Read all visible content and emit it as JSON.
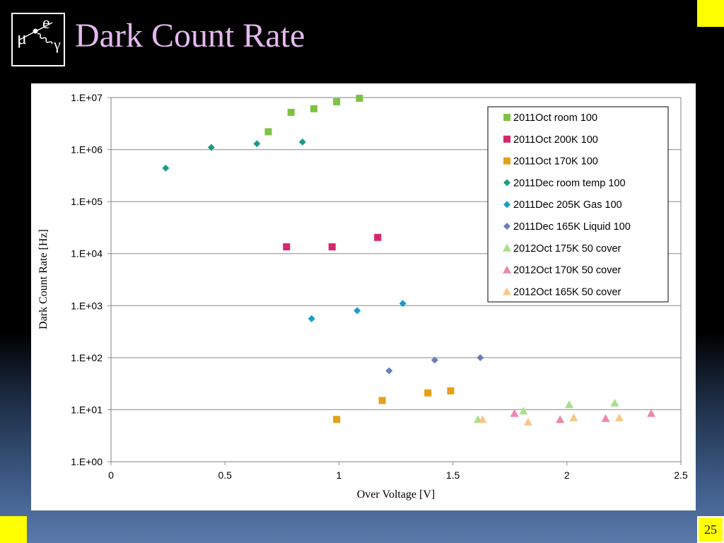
{
  "slide": {
    "title": "Dark Count Rate",
    "page_number": "25",
    "logo_letters": {
      "mu": "μ",
      "e": "e",
      "gamma": "γ"
    }
  },
  "colors": {
    "title": "#e4b8ef",
    "corner_squares": "#ffff00"
  },
  "chart_data": {
    "type": "scatter",
    "title": "",
    "xlabel": "Over Voltage [V]",
    "ylabel": "Dark Count Rate [Hz]",
    "xlim": [
      0,
      2.5
    ],
    "ylim": [
      1,
      10000000
    ],
    "y_scale": "log",
    "x_ticks": [
      0,
      0.5,
      1,
      1.5,
      2,
      2.5
    ],
    "x_tick_labels": [
      "0",
      "0.5",
      "1",
      "1.5",
      "2",
      "2.5"
    ],
    "y_ticks": [
      1,
      10,
      100,
      1000,
      10000,
      100000,
      1000000,
      10000000
    ],
    "y_tick_labels": [
      "1.E+00",
      "1.E+01",
      "1.E+02",
      "1.E+03",
      "1.E+04",
      "1.E+05",
      "1.E+06",
      "1.E+07"
    ],
    "grid": "horizontal major lines",
    "legend_position": "top-right",
    "series": [
      {
        "name": "2011Oct room 100",
        "marker": "square",
        "color": "#7dc242",
        "points": [
          [
            0.69,
            2200000
          ],
          [
            0.79,
            5200000
          ],
          [
            0.89,
            6100000
          ],
          [
            0.99,
            8300000
          ],
          [
            1.09,
            9700000
          ]
        ]
      },
      {
        "name": "2011Oct 200K 100",
        "marker": "square",
        "color": "#d6266e",
        "points": [
          [
            0.77,
            13500
          ],
          [
            0.97,
            13500
          ],
          [
            1.17,
            20500
          ]
        ]
      },
      {
        "name": "2011Oct 170K 100",
        "marker": "square",
        "color": "#e6a018",
        "points": [
          [
            0.99,
            6.5
          ],
          [
            1.19,
            15
          ],
          [
            1.39,
            21
          ],
          [
            1.49,
            23
          ]
        ]
      },
      {
        "name": "2011Dec room temp 100",
        "marker": "diamond",
        "color": "#1e9a8a",
        "points": [
          [
            0.24,
            440000
          ],
          [
            0.44,
            1100000
          ],
          [
            0.64,
            1300000
          ],
          [
            0.84,
            1400000
          ]
        ]
      },
      {
        "name": "2011Dec 205K Gas 100",
        "marker": "diamond",
        "color": "#1a9bc8",
        "points": [
          [
            0.88,
            560
          ],
          [
            1.08,
            800
          ],
          [
            1.28,
            1100
          ]
        ]
      },
      {
        "name": "2011Dec 165K Liquid 100",
        "marker": "diamond",
        "color": "#6b7fb8",
        "points": [
          [
            1.22,
            56
          ],
          [
            1.42,
            90
          ],
          [
            1.62,
            100
          ]
        ]
      },
      {
        "name": "2012Oct 175K 50 cover",
        "marker": "triangle",
        "color": "#a8e08a",
        "points": [
          [
            1.61,
            6.5
          ],
          [
            1.81,
            9.5
          ],
          [
            2.01,
            12.5
          ],
          [
            2.21,
            13.5
          ]
        ]
      },
      {
        "name": "2012Oct 170K 50 cover",
        "marker": "triangle",
        "color": "#ee88a8",
        "points": [
          [
            1.77,
            8.5
          ],
          [
            1.97,
            6.5
          ],
          [
            2.17,
            6.8
          ],
          [
            2.37,
            8.5
          ]
        ]
      },
      {
        "name": "2012Oct 165K 50 cover",
        "marker": "triangle",
        "color": "#f5c888",
        "points": [
          [
            1.63,
            6.5
          ],
          [
            1.83,
            5.8
          ],
          [
            2.03,
            7
          ],
          [
            2.23,
            7
          ]
        ]
      }
    ]
  }
}
